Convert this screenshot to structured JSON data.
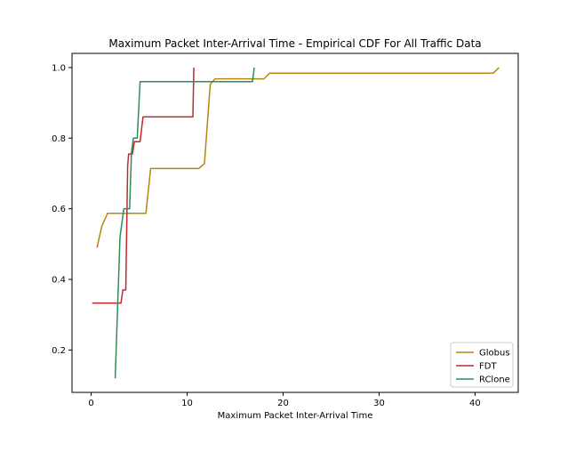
{
  "chart_data": {
    "type": "line",
    "title": "Maximum Packet Inter-Arrival Time - Empirical CDF For All Traffic Data",
    "xlabel": "Maximum Packet Inter-Arrival Time",
    "ylabel": "",
    "xlim": [
      -2,
      44.5
    ],
    "ylim": [
      0.08,
      1.04
    ],
    "x_ticks": [
      0,
      10,
      20,
      30,
      40
    ],
    "y_ticks": [
      0.2,
      0.4,
      0.6,
      0.8,
      1.0
    ],
    "x_tick_labels": [
      "0",
      "10",
      "20",
      "30",
      "40"
    ],
    "y_tick_labels": [
      "0.2",
      "0.4",
      "0.6",
      "0.8",
      "1.0"
    ],
    "grid": false,
    "legend_position": "bottom-right",
    "series": [
      {
        "name": "Globus",
        "color": "#b8860b",
        "points": [
          [
            0.6,
            0.49
          ],
          [
            1.1,
            0.55
          ],
          [
            1.7,
            0.587
          ],
          [
            5.7,
            0.587
          ],
          [
            6.2,
            0.714
          ],
          [
            11.2,
            0.714
          ],
          [
            11.8,
            0.728
          ],
          [
            12.4,
            0.952
          ],
          [
            12.9,
            0.968
          ],
          [
            18.0,
            0.968
          ],
          [
            18.6,
            0.984
          ],
          [
            41.9,
            0.984
          ],
          [
            42.5,
            1.0
          ]
        ]
      },
      {
        "name": "FDT",
        "color": "#c0282d",
        "points": [
          [
            0.1,
            0.333
          ],
          [
            3.1,
            0.333
          ],
          [
            3.3,
            0.37
          ],
          [
            3.6,
            0.37
          ],
          [
            3.8,
            0.72
          ],
          [
            3.9,
            0.755
          ],
          [
            4.3,
            0.755
          ],
          [
            4.5,
            0.79
          ],
          [
            5.1,
            0.79
          ],
          [
            5.4,
            0.86
          ],
          [
            10.6,
            0.86
          ],
          [
            10.7,
            1.0
          ]
        ]
      },
      {
        "name": "RClone",
        "color": "#2e8b57",
        "points": [
          [
            2.5,
            0.12
          ],
          [
            3.0,
            0.52
          ],
          [
            3.4,
            0.6
          ],
          [
            4.0,
            0.6
          ],
          [
            4.2,
            0.76
          ],
          [
            4.4,
            0.8
          ],
          [
            4.8,
            0.8
          ],
          [
            5.1,
            0.96
          ],
          [
            16.8,
            0.96
          ],
          [
            17.0,
            1.0
          ]
        ]
      }
    ]
  }
}
